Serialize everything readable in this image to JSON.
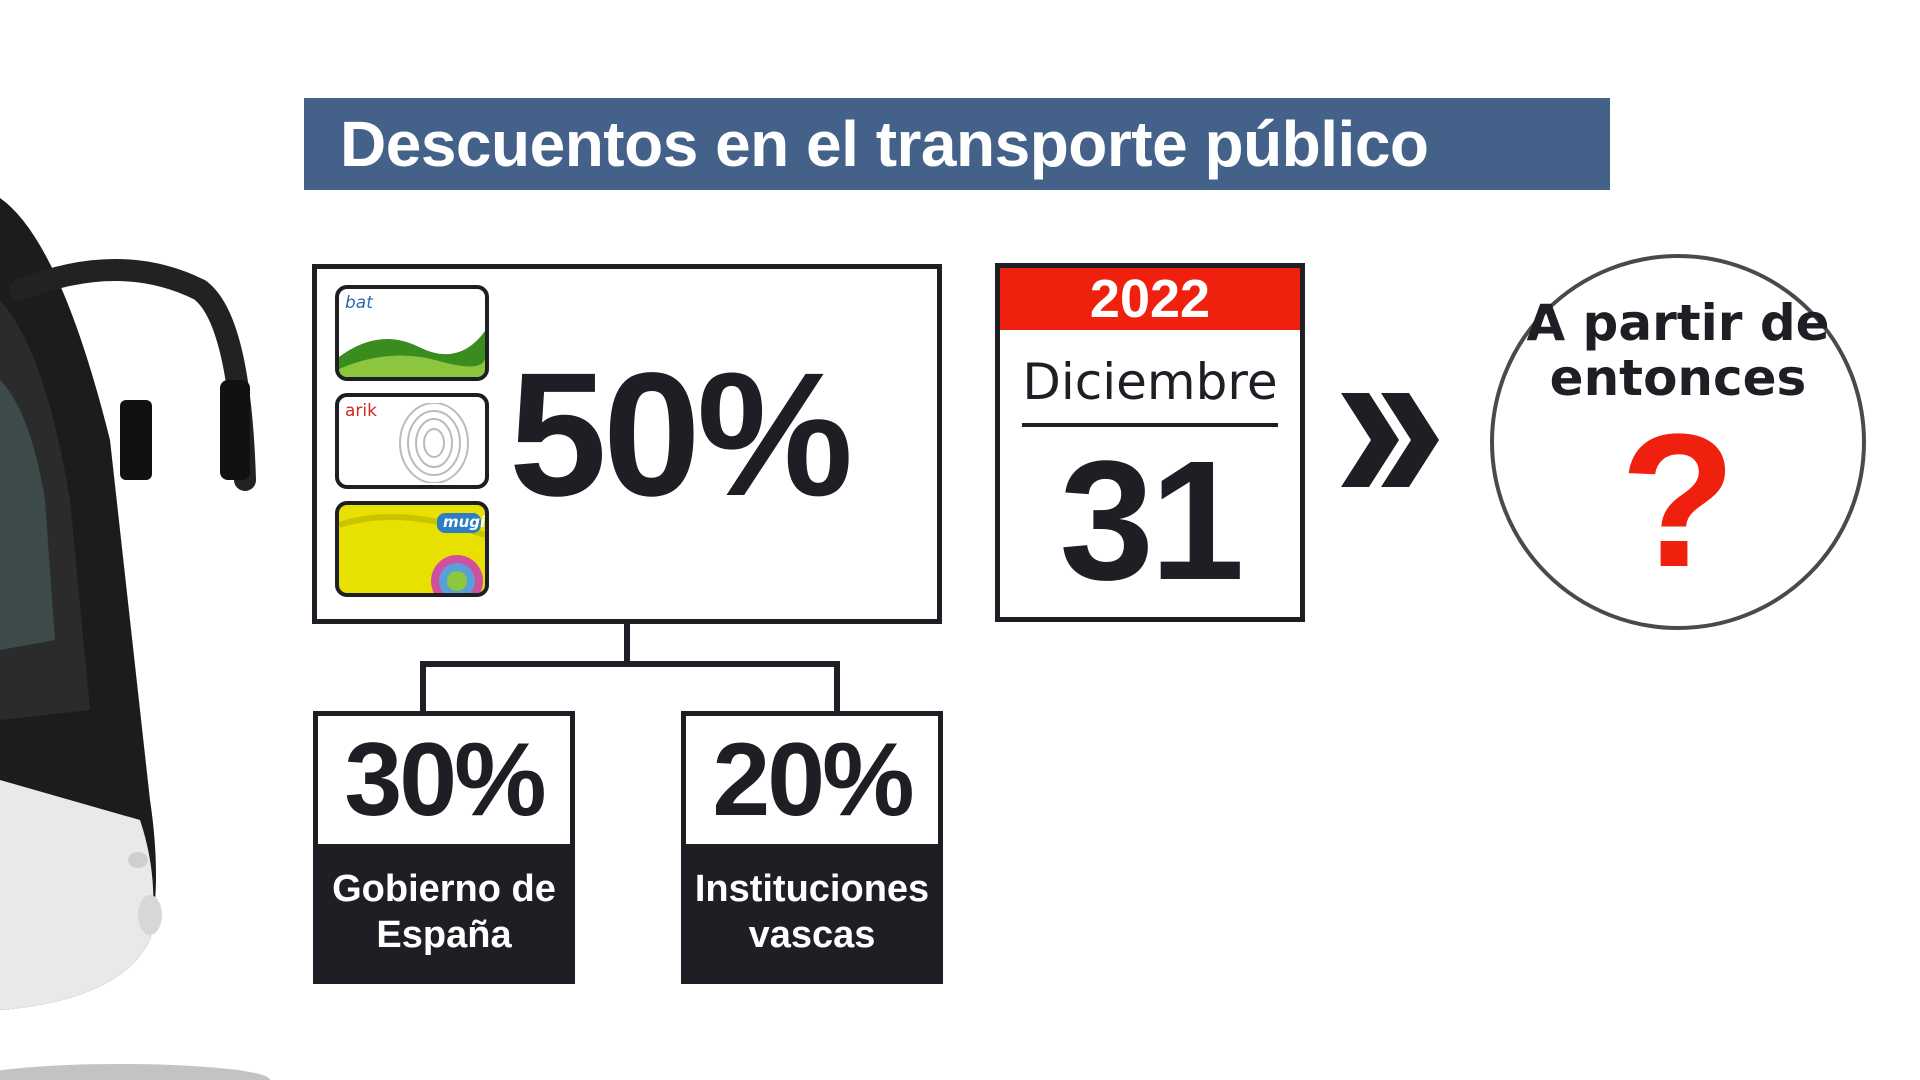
{
  "title": "Descuentos en el transporte público",
  "cards": [
    {
      "label": "bat",
      "color": "#3a8c1e"
    },
    {
      "label": "arik",
      "color": "#d22a1f"
    },
    {
      "label": "mugi",
      "color": "#e7e000"
    }
  ],
  "main_discount": "50%",
  "breakdown": [
    {
      "percent": "30%",
      "label": "Gobierno de España"
    },
    {
      "percent": "20%",
      "label": "Instituciones vascas"
    }
  ],
  "calendar": {
    "year": "2022",
    "month": "Diciembre",
    "day": "31"
  },
  "after": {
    "text": "A partir de entonces",
    "symbol": "?"
  },
  "colors": {
    "title_bg": "#44618a",
    "accent_red": "#f0200f",
    "dark": "#1e1f24"
  }
}
